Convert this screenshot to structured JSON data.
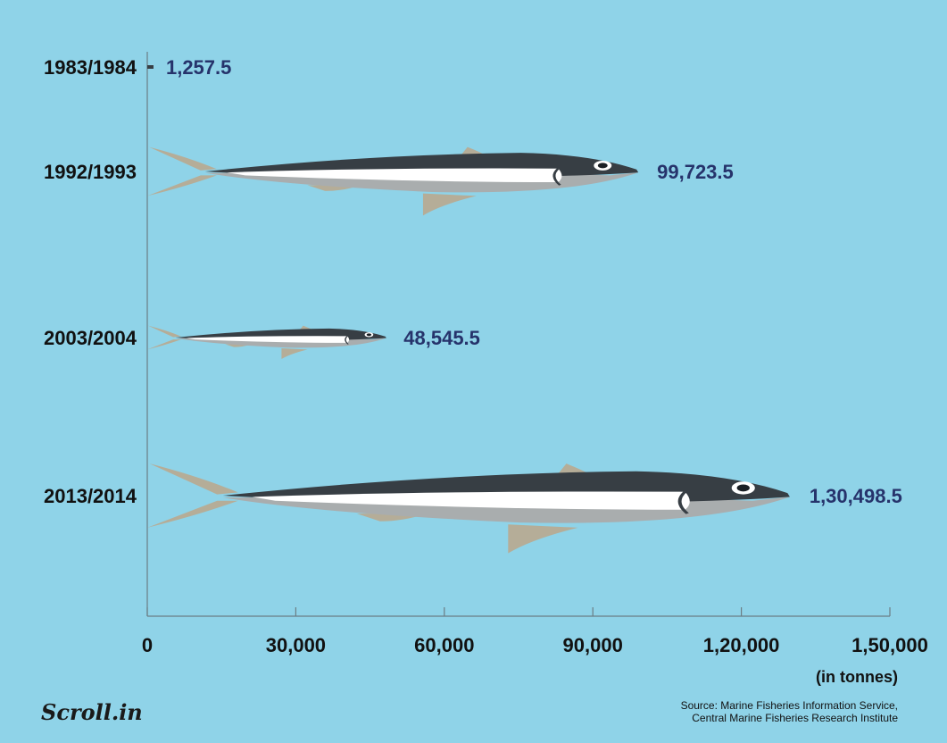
{
  "chart_data": {
    "type": "bar",
    "categories": [
      "1983/1984",
      "1992/1993",
      "2003/2004",
      "2013/2014"
    ],
    "values": [
      1257.5,
      99723.5,
      48545.5,
      130498.5
    ],
    "value_labels": [
      "1,257.5",
      "99,723.5",
      "48,545.5",
      "1,30,498.5"
    ],
    "x_ticks": [
      0,
      30000,
      60000,
      90000,
      120000,
      150000
    ],
    "x_tick_labels": [
      "0",
      "30,000",
      "60,000",
      "90,000",
      "1,20,000",
      "1,50,000"
    ],
    "xlim": [
      0,
      150000
    ],
    "xlabel": "(in tonnes)",
    "orientation": "horizontal",
    "mark_style": "fish-pictogram"
  },
  "source_line1": "Source: Marine Fisheries Information Service,",
  "source_line2": "Central Marine Fisheries Research Institute",
  "logo_text": "Scroll.in",
  "colors": {
    "background": "#8fd3e8",
    "fin": "#b5ad98",
    "back": "#373e44",
    "belly": "#a9adae",
    "stripe": "#ffffff",
    "value_text": "#26336b",
    "axis": "#6b7d84"
  }
}
